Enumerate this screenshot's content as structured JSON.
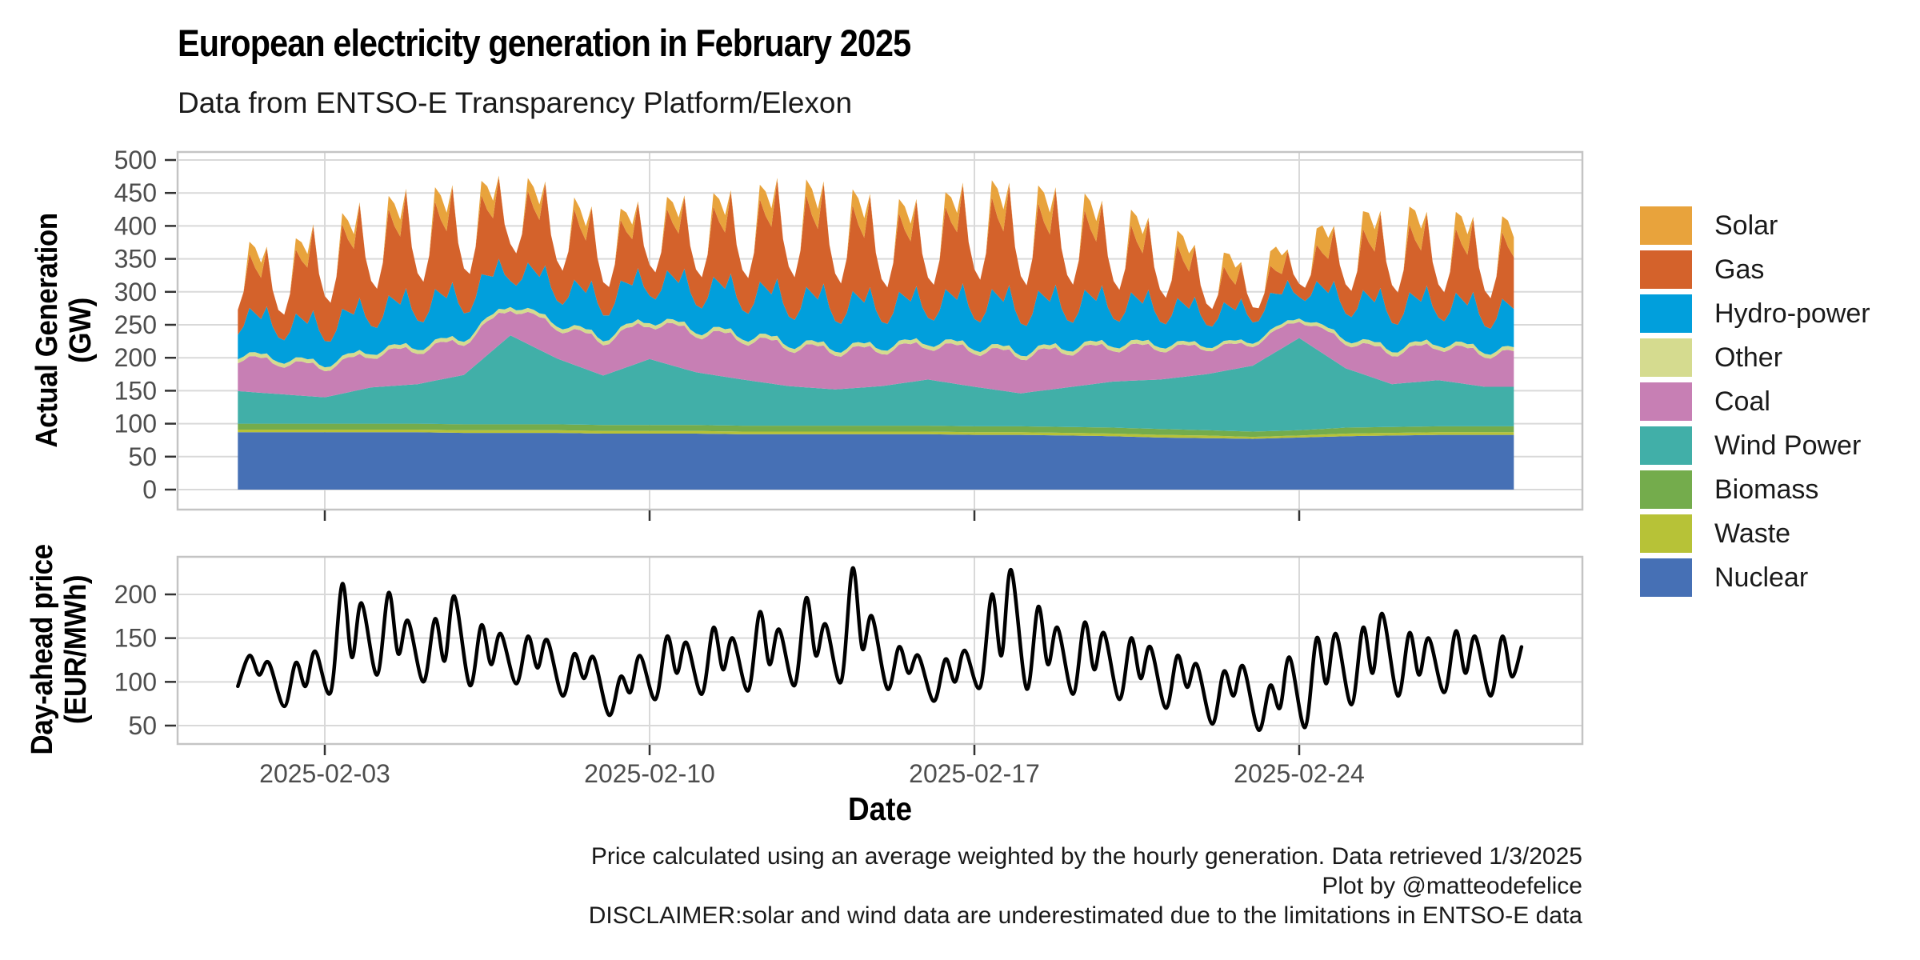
{
  "header": {
    "title": "European electricity generation in February 2025",
    "subtitle": "Data from ENTSO-E Transparency Platform/Elexon"
  },
  "axes": {
    "x_title": "Date",
    "y1_title_line1": "Actual Generation",
    "y1_title_line2": "(GW)",
    "y2_title_line1": "Day-ahead price",
    "y2_title_line2": "(EUR/MWh)"
  },
  "caption": {
    "line1": "Price calculated using an average weighted by the hourly generation. Data retrieved 1/3/2025",
    "line2": "Plot by @matteodefelice",
    "line3": "DISCLAIMER:solar and wind data are underestimated due to the limitations in ENTSO-E data"
  },
  "legend": {
    "items": [
      {
        "label": "Solar",
        "color": "#E8A33C"
      },
      {
        "label": "Gas",
        "color": "#D4622B"
      },
      {
        "label": "Hydro-power",
        "color": "#019FDC"
      },
      {
        "label": "Other",
        "color": "#D5DB8F"
      },
      {
        "label": "Coal",
        "color": "#C77FB4"
      },
      {
        "label": "Wind Power",
        "color": "#41AFA8"
      },
      {
        "label": "Biomass",
        "color": "#74AC4C"
      },
      {
        "label": "Waste",
        "color": "#B7C237"
      },
      {
        "label": "Nuclear",
        "color": "#4670B5"
      }
    ]
  },
  "style": {
    "gridline_color": "#D9D9D9",
    "border_color": "#C4C4C4",
    "tick_color": "#333333",
    "tick_label_color": "#4D4D4D"
  },
  "chart_data": [
    {
      "type": "area",
      "panel": "generation",
      "ylabel": "Actual Generation (GW)",
      "ylim": [
        0,
        500
      ],
      "y_ticks": [
        0,
        50,
        100,
        150,
        200,
        250,
        300,
        350,
        400,
        450,
        500
      ],
      "x_start_date": "2025-02-01",
      "x_ticks": [
        {
          "label": "2025-02-03",
          "day": 2
        },
        {
          "label": "2025-02-10",
          "day": 9
        },
        {
          "label": "2025-02-17",
          "day": 16
        },
        {
          "label": "2025-02-24",
          "day": 23
        }
      ],
      "sample_hours": 3,
      "start_hour": 3,
      "end_hour": 663,
      "series": [
        {
          "name": "Nuclear",
          "color": "#4670B5",
          "daily": [
            87,
            87,
            87,
            87,
            87,
            86,
            86,
            86,
            85,
            85,
            85,
            84,
            84,
            84,
            84,
            84,
            83,
            83,
            82,
            81,
            79,
            78,
            77,
            79,
            81,
            82,
            83,
            83
          ],
          "profile": [
            1,
            1,
            1,
            1,
            1,
            1,
            1,
            1
          ]
        },
        {
          "name": "Waste",
          "color": "#B7C237",
          "daily": [
            4,
            4,
            4,
            4,
            4,
            4,
            4,
            4,
            4,
            4,
            4,
            4,
            4,
            4,
            4,
            4,
            4,
            4,
            4,
            4,
            4,
            4,
            3,
            3,
            4,
            4,
            4,
            4
          ],
          "profile": [
            1,
            1,
            1,
            1,
            1,
            1,
            1,
            1
          ]
        },
        {
          "name": "Biomass",
          "color": "#74AC4C",
          "daily": [
            9,
            9,
            9,
            9,
            9,
            9,
            9,
            9,
            9,
            9,
            9,
            9,
            9,
            9,
            9,
            9,
            9,
            9,
            9,
            9,
            9,
            8,
            8,
            8,
            9,
            9,
            9,
            9
          ],
          "profile": [
            1,
            1,
            1,
            1,
            1,
            1,
            1,
            1
          ]
        },
        {
          "name": "Wind Power",
          "color": "#41AFA8",
          "daily": [
            50,
            45,
            40,
            55,
            60,
            75,
            135,
            100,
            75,
            100,
            80,
            70,
            60,
            55,
            60,
            70,
            60,
            50,
            60,
            70,
            75,
            85,
            100,
            140,
            90,
            65,
            70,
            60
          ],
          "profile": [
            1,
            1,
            1,
            1,
            1,
            1,
            1,
            1
          ]
        },
        {
          "name": "Coal",
          "color": "#C77FB4",
          "daily": [
            50,
            48,
            45,
            50,
            52,
            50,
            42,
            48,
            52,
            55,
            60,
            62,
            60,
            58,
            55,
            52,
            56,
            58,
            56,
            52,
            48,
            40,
            32,
            28,
            40,
            48,
            52,
            50
          ],
          "profile": [
            0.88,
            0.85,
            0.95,
            1.1,
            1.12,
            1.08,
            1.12,
            0.95
          ]
        },
        {
          "name": "Other",
          "color": "#D5DB8F",
          "daily": [
            6,
            6,
            6,
            6,
            6,
            6,
            6,
            6,
            6,
            6,
            6,
            6,
            6,
            6,
            6,
            6,
            6,
            6,
            6,
            6,
            6,
            5,
            5,
            5,
            6,
            6,
            6,
            6
          ],
          "profile": [
            1,
            1,
            1,
            1,
            1,
            1,
            1,
            1
          ]
        },
        {
          "name": "Hydro-power",
          "color": "#019FDC",
          "daily": [
            55,
            52,
            55,
            60,
            62,
            60,
            55,
            55,
            55,
            58,
            60,
            62,
            65,
            65,
            60,
            58,
            66,
            68,
            65,
            60,
            55,
            48,
            45,
            45,
            58,
            62,
            60,
            58
          ],
          "profile": [
            0.72,
            0.68,
            0.85,
            1.25,
            1.1,
            1.0,
            1.35,
            0.95
          ]
        },
        {
          "name": "Gas",
          "color": "#D4622B",
          "daily": [
            62,
            58,
            95,
            95,
            100,
            95,
            78,
            85,
            70,
            65,
            75,
            85,
            105,
            100,
            90,
            85,
            105,
            100,
            95,
            80,
            68,
            45,
            32,
            28,
            62,
            80,
            70,
            75
          ],
          "profile": [
            0.72,
            0.62,
            0.85,
            1.35,
            1.15,
            1.05,
            1.5,
            0.95
          ]
        },
        {
          "name": "Solar",
          "color": "#E8A33C",
          "daily": [
            32,
            30,
            26,
            32,
            36,
            38,
            34,
            30,
            28,
            30,
            34,
            36,
            38,
            42,
            38,
            34,
            42,
            46,
            44,
            40,
            38,
            36,
            34,
            40,
            44,
            46,
            44,
            40
          ],
          "profile": [
            0,
            0,
            0.02,
            0.6,
            1.0,
            0.75,
            0.08,
            0
          ]
        }
      ]
    },
    {
      "type": "line",
      "panel": "price",
      "ylabel": "Day-ahead price (EUR/MWh)",
      "color": "#000000",
      "y_ticks": [
        50,
        100,
        150,
        200
      ],
      "daily_anchor_hours": [
        3,
        9,
        14,
        19
      ],
      "daily_values": [
        [
          95,
          130,
          108,
          122
        ],
        [
          72,
          122,
          95,
          135
        ],
        [
          88,
          212,
          128,
          190
        ],
        [
          108,
          202,
          132,
          170
        ],
        [
          100,
          172,
          124,
          198
        ],
        [
          96,
          165,
          120,
          155
        ],
        [
          98,
          152,
          116,
          148
        ],
        [
          84,
          132,
          104,
          128
        ],
        [
          62,
          106,
          88,
          130
        ],
        [
          80,
          152,
          110,
          145
        ],
        [
          86,
          162,
          114,
          150
        ],
        [
          90,
          180,
          120,
          160
        ],
        [
          96,
          196,
          130,
          166
        ],
        [
          100,
          230,
          138,
          175
        ],
        [
          92,
          140,
          110,
          130
        ],
        [
          78,
          126,
          100,
          136
        ],
        [
          94,
          200,
          130,
          228
        ],
        [
          92,
          186,
          120,
          162
        ],
        [
          86,
          168,
          114,
          156
        ],
        [
          80,
          150,
          104,
          140
        ],
        [
          70,
          130,
          94,
          120
        ],
        [
          52,
          112,
          84,
          118
        ],
        [
          45,
          96,
          70,
          128
        ],
        [
          48,
          150,
          98,
          155
        ],
        [
          74,
          162,
          110,
          178
        ],
        [
          84,
          156,
          108,
          150
        ],
        [
          88,
          158,
          110,
          152
        ],
        [
          84,
          152,
          106,
          140
        ]
      ]
    }
  ]
}
